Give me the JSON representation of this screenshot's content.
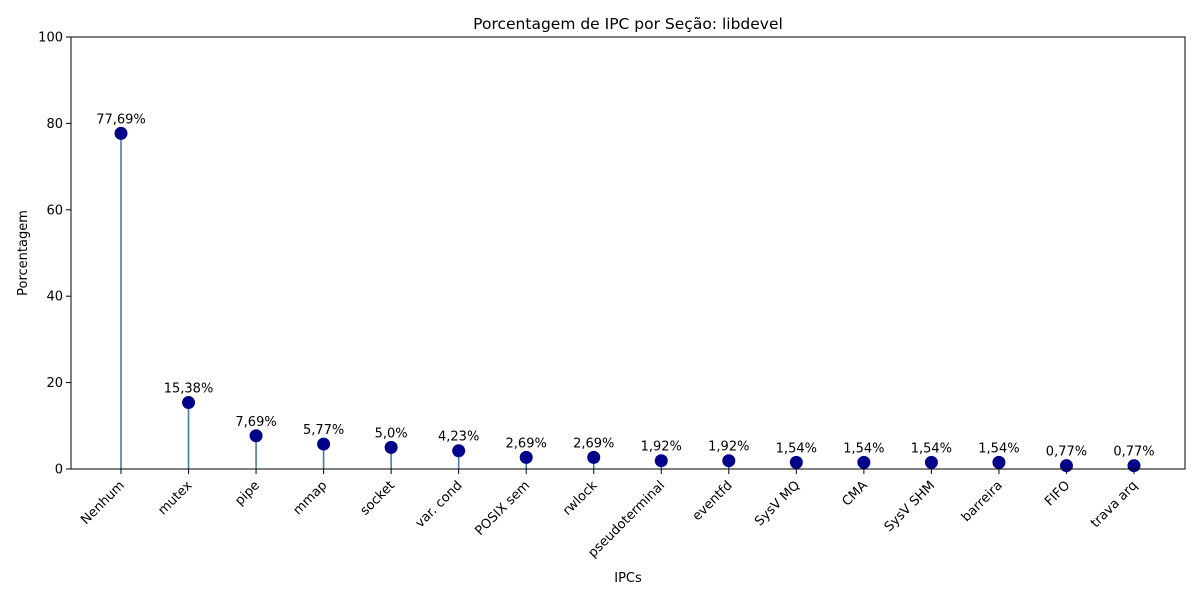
{
  "chart_data": {
    "type": "lollipop",
    "title": "Porcentagem de IPC por Seção: libdevel",
    "xlabel": "IPCs",
    "ylabel": "Porcentagem",
    "ylim": [
      0,
      100
    ],
    "yticks": [
      0,
      20,
      40,
      60,
      80,
      100
    ],
    "categories": [
      "Nenhum",
      "mutex",
      "pipe",
      "mmap",
      "socket",
      "var. cond",
      "POSIX sem",
      "rwlock",
      "pseudoterminal",
      "eventfd",
      "SysV MQ",
      "CMA",
      "SysV SHM",
      "barreira",
      "FIFO",
      "trava arq"
    ],
    "values": [
      77.69,
      15.38,
      7.69,
      5.77,
      5.0,
      4.23,
      2.69,
      2.69,
      1.92,
      1.92,
      1.54,
      1.54,
      1.54,
      1.54,
      0.77,
      0.77
    ],
    "data_labels": [
      "77,69%",
      "15,38%",
      "7,69%",
      "5,77%",
      "5,0%",
      "4,23%",
      "2,69%",
      "2,69%",
      "1,92%",
      "1,92%",
      "1,54%",
      "1,54%",
      "1,54%",
      "1,54%",
      "0,77%",
      "0,77%"
    ],
    "grid": false,
    "legend": "none",
    "colors": {
      "marker": "#00008b",
      "stem": "#4a7aaa"
    }
  }
}
